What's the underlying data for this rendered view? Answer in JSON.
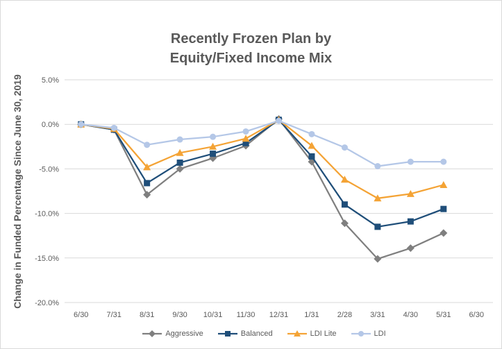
{
  "chart_data": {
    "type": "line",
    "title": [
      "Recently Frozen Plan by",
      "Equity/Fixed Income Mix"
    ],
    "ylabel": "Change in Funded Percentage Since June 30, 2019",
    "xlabel": "",
    "categories": [
      "6/30",
      "7/31",
      "8/31",
      "9/30",
      "10/31",
      "11/30",
      "12/31",
      "1/31",
      "2/28",
      "3/31",
      "4/30",
      "5/31",
      "6/30"
    ],
    "y_ticks": [
      "5.0%",
      "0.0%",
      "-5.0%",
      "-10.0%",
      "-15.0%",
      "-20.0%"
    ],
    "ylim": [
      -20,
      5
    ],
    "grid": "horizontal",
    "legend_position": "bottom",
    "series": [
      {
        "name": "Aggressive",
        "color": "#7f7f7f",
        "marker": "diamond",
        "values": [
          0.0,
          -0.6,
          -7.9,
          -5.0,
          -3.8,
          -2.4,
          0.6,
          -4.2,
          -11.1,
          -15.1,
          -13.9,
          -12.2,
          null
        ]
      },
      {
        "name": "Balanced",
        "color": "#1f4e79",
        "marker": "square",
        "values": [
          0.0,
          -0.6,
          -6.6,
          -4.3,
          -3.3,
          -2.1,
          0.5,
          -3.6,
          -9.0,
          -11.5,
          -10.9,
          -9.5,
          null
        ]
      },
      {
        "name": "LDI Lite",
        "color": "#f4a335",
        "marker": "triangle",
        "values": [
          0.0,
          -0.5,
          -4.8,
          -3.2,
          -2.5,
          -1.6,
          0.5,
          -2.4,
          -6.2,
          -8.3,
          -7.8,
          -6.8,
          null
        ]
      },
      {
        "name": "LDI",
        "color": "#b4c7e7",
        "marker": "circle",
        "values": [
          0.0,
          -0.4,
          -2.3,
          -1.7,
          -1.4,
          -0.8,
          0.4,
          -1.1,
          -2.6,
          -4.7,
          -4.2,
          -4.2,
          null
        ]
      }
    ]
  }
}
